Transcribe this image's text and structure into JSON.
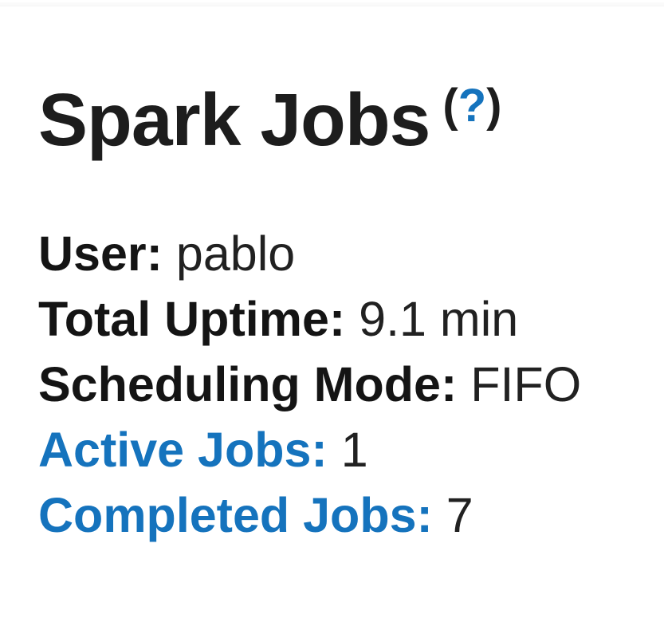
{
  "header": {
    "title": "Spark Jobs",
    "help": {
      "open_paren": "(",
      "question_mark": "?",
      "close_paren": ")"
    }
  },
  "summary": {
    "items": [
      {
        "label": "User:",
        "value": "pablo"
      },
      {
        "label": "Total Uptime:",
        "value": "9.1 min"
      },
      {
        "label": "Scheduling Mode:",
        "value": "FIFO"
      },
      {
        "label": "Active Jobs:",
        "value": "1"
      },
      {
        "label": "Completed Jobs:",
        "value": "7"
      }
    ]
  },
  "colors": {
    "link_blue": "#1573bd",
    "title_text": "#1d1d1d",
    "body_text": "#212121"
  }
}
